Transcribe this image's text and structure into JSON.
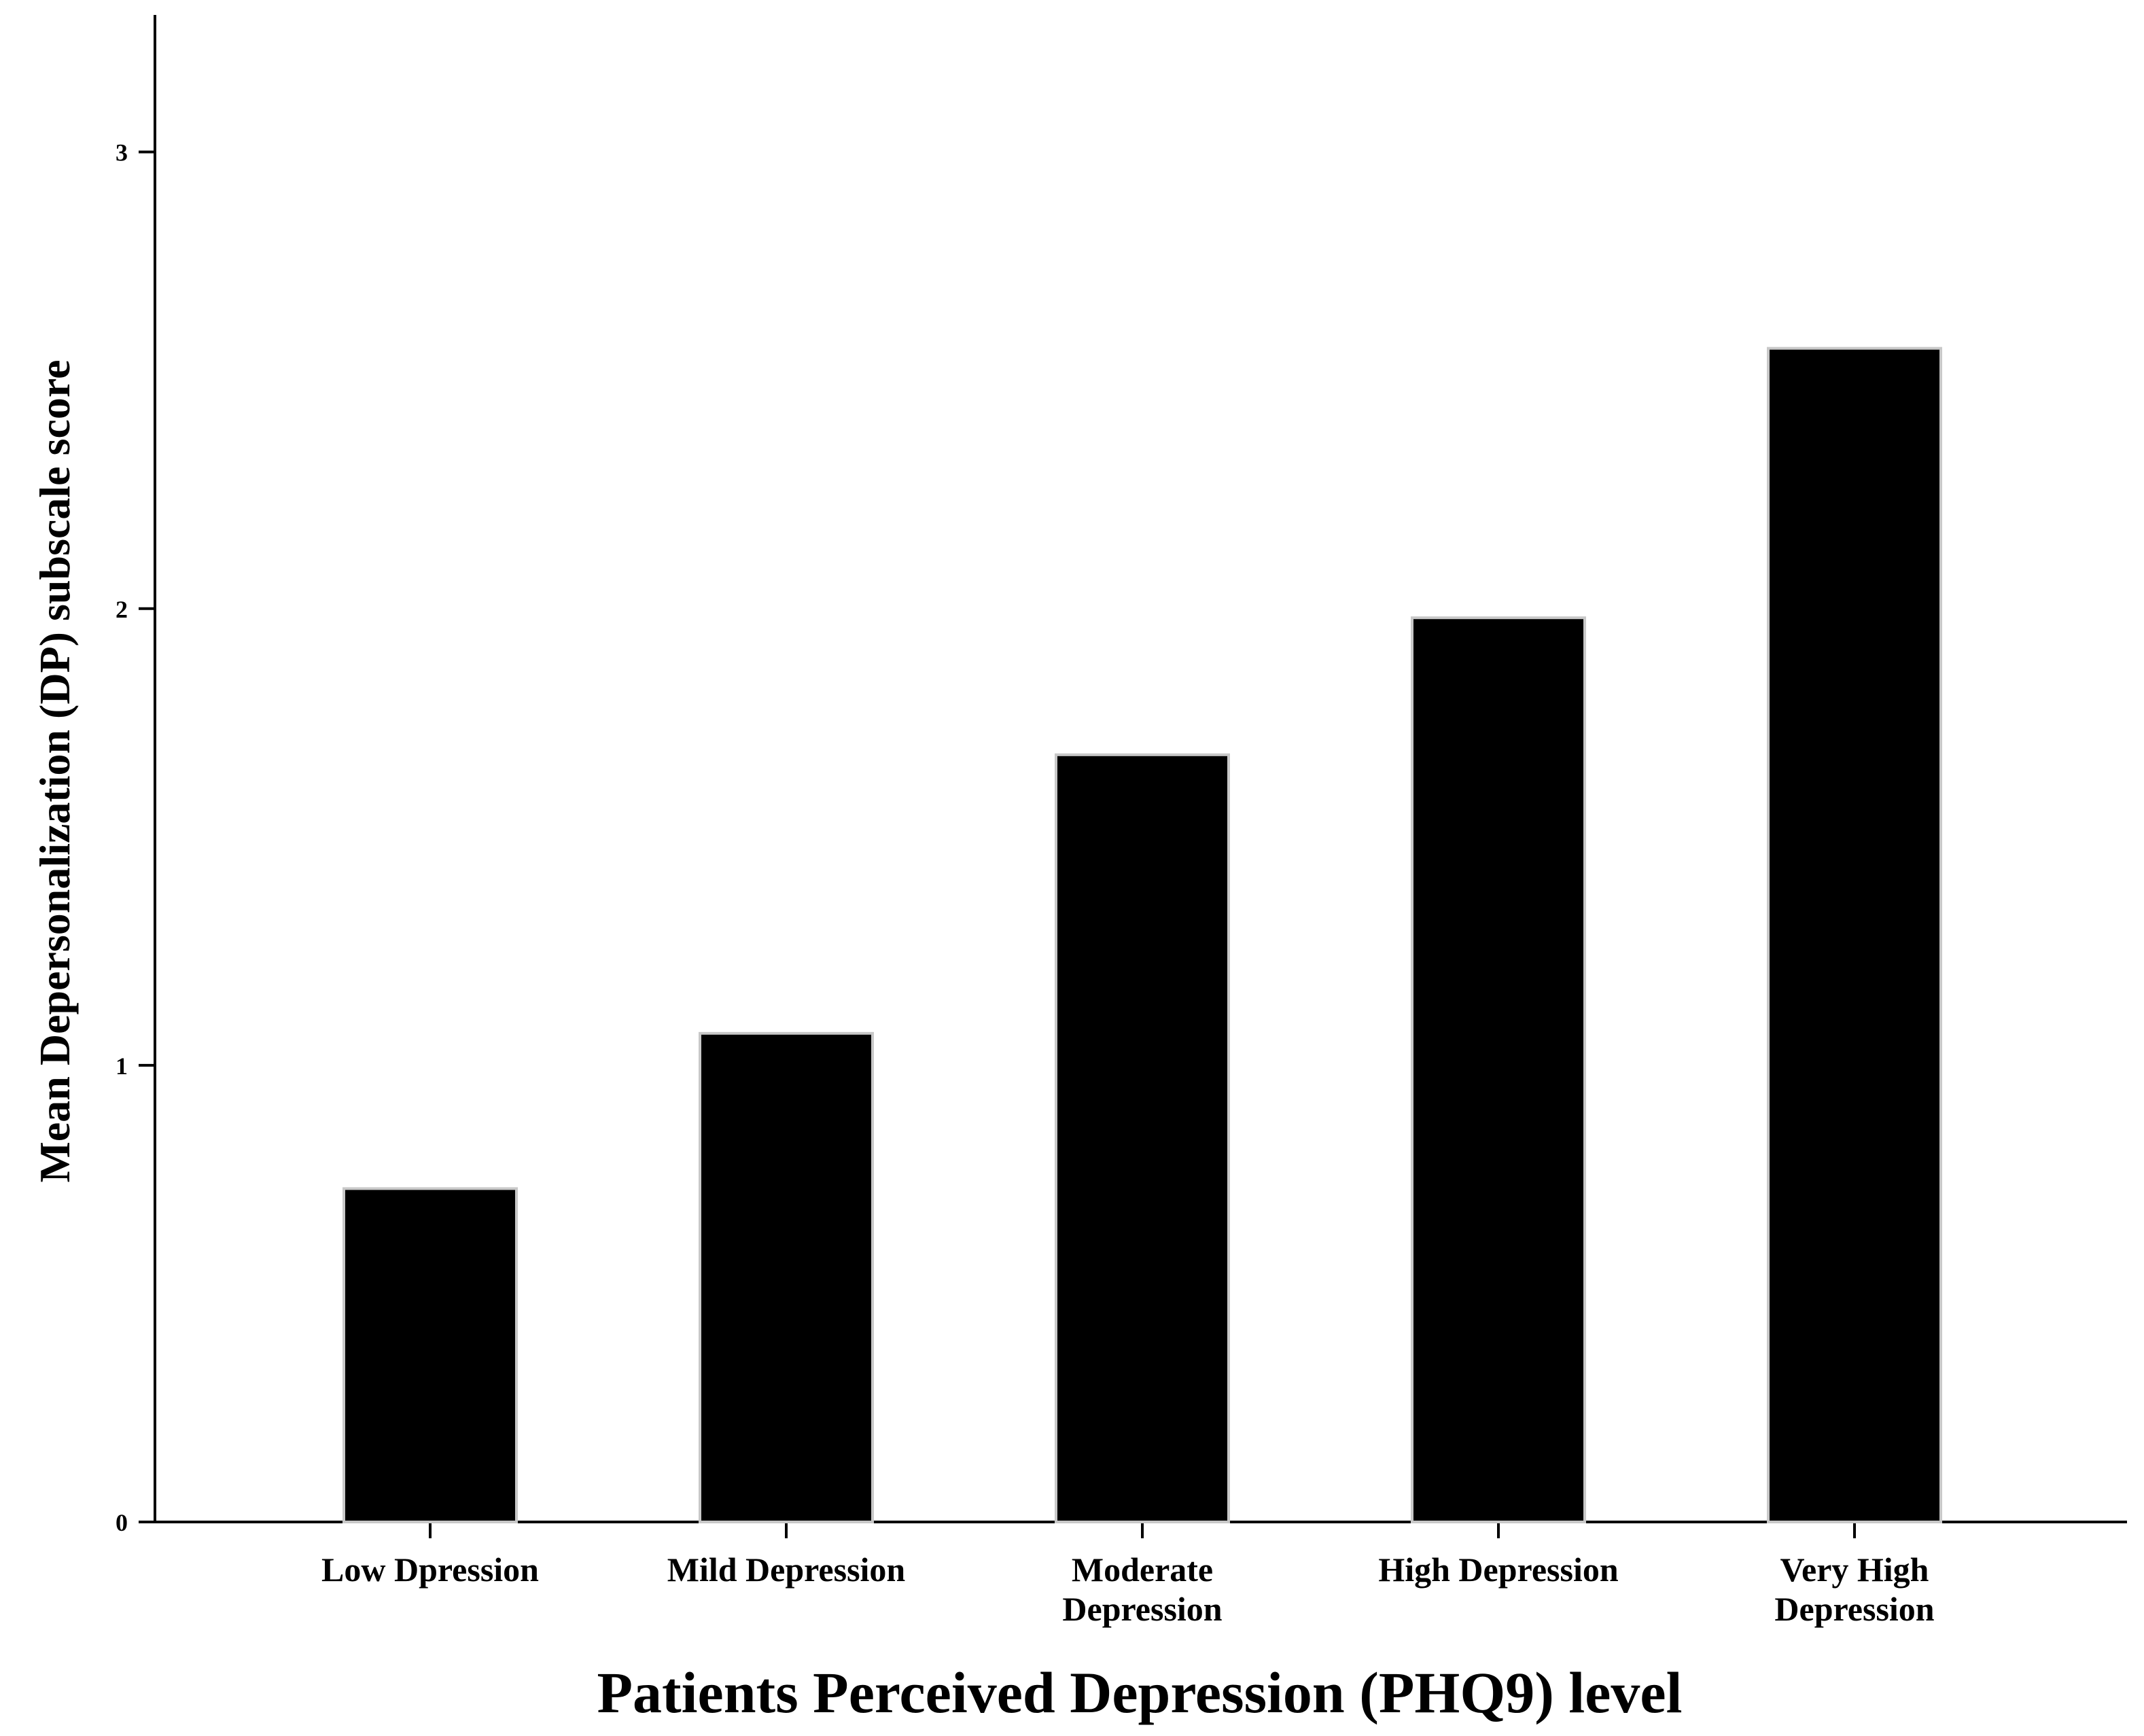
{
  "chart_data": {
    "type": "bar",
    "title": "",
    "xlabel": "Patients Perceived Depression (PHQ9) level",
    "ylabel": "Mean Depersonalization (DP) subscale score",
    "categories": [
      [
        "Low Dpression"
      ],
      [
        "Mild Depression"
      ],
      [
        "Moderate",
        "Depression"
      ],
      [
        "High Depression"
      ],
      [
        "Very High",
        "Depression"
      ]
    ],
    "values": [
      0.73,
      1.07,
      1.68,
      1.98,
      2.57
    ],
    "ylim": [
      0,
      3.3
    ],
    "yticks": [
      0,
      1,
      2,
      3
    ],
    "bar_color": "#000000",
    "grid": false,
    "legend": "none"
  }
}
